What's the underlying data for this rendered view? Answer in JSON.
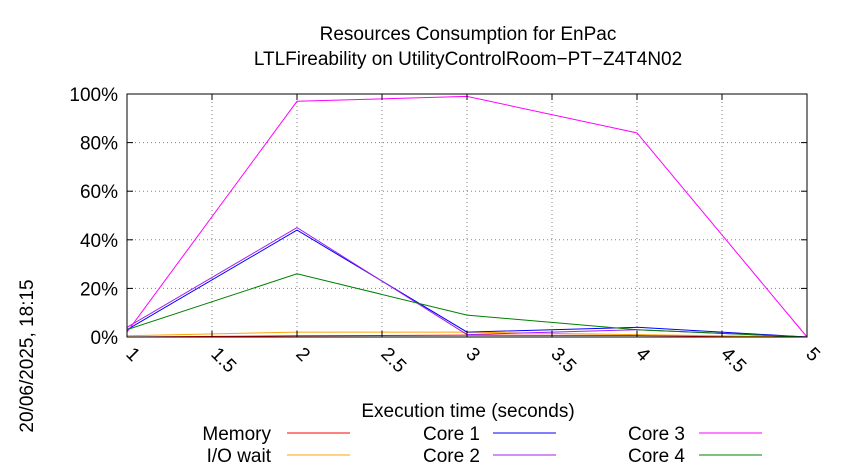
{
  "chart_data": {
    "type": "line",
    "title_line1": "Resources Consumption for EnPac",
    "title_line2": "LTLFireability on UtilityControlRoom−PT−Z4T4N02",
    "xlabel": "Execution time (seconds)",
    "timestamp": "20/06/2025, 18:15",
    "xlim": [
      1,
      5
    ],
    "ylim": [
      0,
      100
    ],
    "x_ticks": [
      1,
      1.5,
      2,
      2.5,
      3,
      3.5,
      4,
      4.5,
      5
    ],
    "x_tick_labels": [
      "1",
      "1.5",
      "2",
      "2.5",
      "3",
      "3.5",
      "4",
      "4.5",
      "5"
    ],
    "y_ticks": [
      0,
      20,
      40,
      60,
      80,
      100
    ],
    "y_tick_labels": [
      "0%",
      "20%",
      "40%",
      "60%",
      "80%",
      "100%"
    ],
    "grid": true,
    "legend_position": "bottom",
    "x": [
      1,
      2,
      3,
      4,
      5
    ],
    "series": [
      {
        "name": "Memory",
        "color": "#ff0000",
        "values": [
          0,
          0.5,
          0.8,
          0.6,
          0
        ]
      },
      {
        "name": "I/O wait",
        "color": "#ffa500",
        "values": [
          0.5,
          2,
          2,
          1,
          0
        ]
      },
      {
        "name": "Core 1",
        "color": "#0000ff",
        "values": [
          3,
          44,
          2,
          4,
          0
        ]
      },
      {
        "name": "Core 2",
        "color": "#a020f0",
        "values": [
          4,
          45,
          1,
          3,
          0
        ]
      },
      {
        "name": "Core 3",
        "color": "#ff00ff",
        "values": [
          2,
          97,
          99,
          84,
          0
        ]
      },
      {
        "name": "Core 4",
        "color": "#008000",
        "values": [
          3,
          26,
          9,
          3,
          0
        ]
      }
    ]
  }
}
